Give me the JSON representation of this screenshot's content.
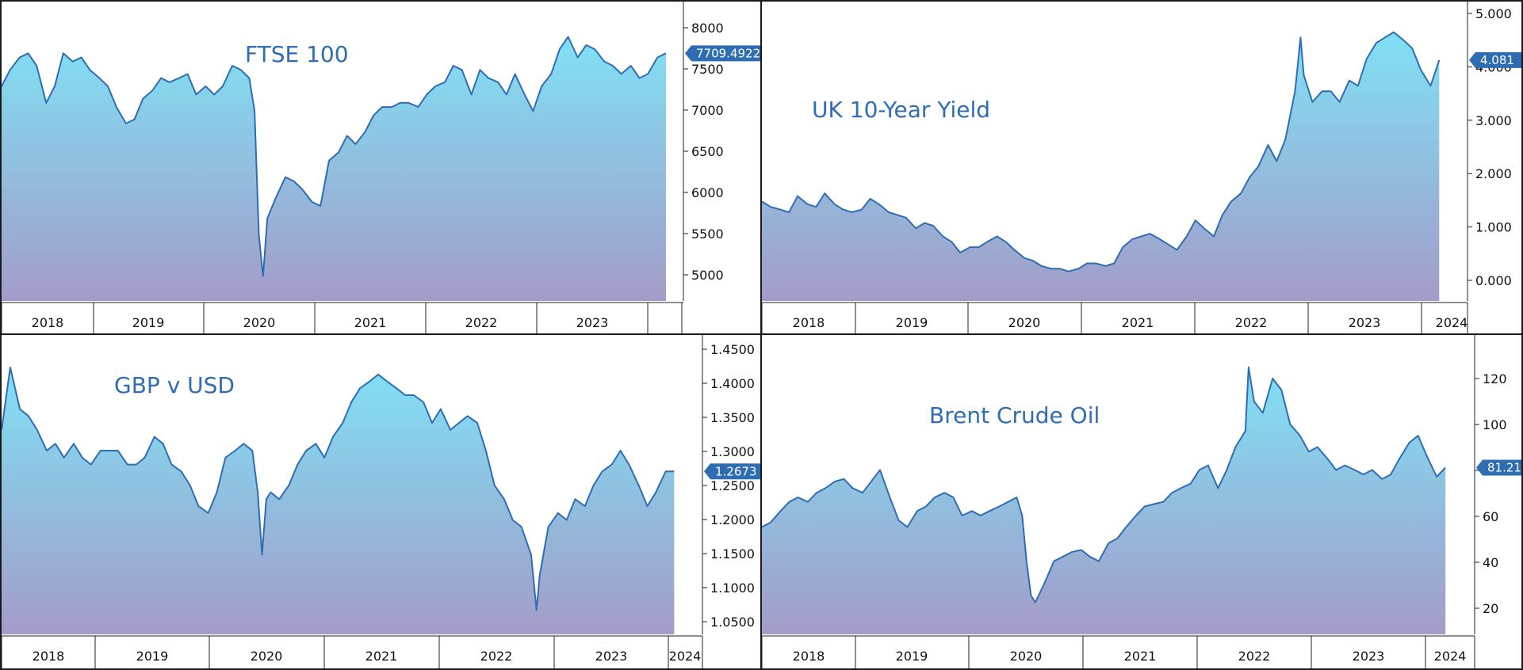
{
  "chart_data": [
    {
      "type": "area",
      "title": "FTSE 100",
      "xlabel": "",
      "ylabel": "",
      "x_labels": [
        "2018",
        "2019",
        "2020",
        "2021",
        "2022",
        "2023"
      ],
      "x_range": [
        2017.75,
        2024.0
      ],
      "ylim": [
        4700,
        8250
      ],
      "yticks": [
        "5000",
        "5500",
        "6000",
        "6500",
        "7000",
        "7500",
        "8000"
      ],
      "last_value": "7709.4922",
      "grid": false,
      "colors": {
        "line": "#2f6db3",
        "fill_top": "#80e0f5",
        "fill_bottom": "#a39cc8",
        "label_bg": "#2f6db3"
      },
      "series": [
        {
          "x": [
            2017.75,
            2017.83,
            2017.92,
            2018.0,
            2018.08,
            2018.17,
            2018.25,
            2018.33,
            2018.42,
            2018.5,
            2018.58,
            2018.67,
            2018.75,
            2018.83,
            2018.92,
            2019.0,
            2019.08,
            2019.17,
            2019.25,
            2019.33,
            2019.42,
            2019.5,
            2019.58,
            2019.67,
            2019.75,
            2019.83,
            2019.92,
            2020.0,
            2020.08,
            2020.13,
            2020.17,
            2020.21,
            2020.25,
            2020.33,
            2020.42,
            2020.5,
            2020.58,
            2020.67,
            2020.75,
            2020.83,
            2020.92,
            2021.0,
            2021.08,
            2021.17,
            2021.25,
            2021.33,
            2021.42,
            2021.5,
            2021.58,
            2021.67,
            2021.75,
            2021.83,
            2021.92,
            2022.0,
            2022.08,
            2022.17,
            2022.25,
            2022.33,
            2022.42,
            2022.5,
            2022.58,
            2022.67,
            2022.75,
            2022.83,
            2022.92,
            2023.0,
            2023.08,
            2023.17,
            2023.25,
            2023.33,
            2023.42,
            2023.5,
            2023.58,
            2023.67,
            2023.75,
            2023.83,
            2023.92,
            2024.0
          ],
          "y": [
            7300,
            7500,
            7650,
            7700,
            7550,
            7100,
            7300,
            7700,
            7600,
            7650,
            7500,
            7400,
            7300,
            7050,
            6850,
            6900,
            7150,
            7250,
            7400,
            7350,
            7400,
            7450,
            7200,
            7300,
            7200,
            7300,
            7550,
            7500,
            7400,
            7000,
            5500,
            5000,
            5700,
            5950,
            6200,
            6150,
            6050,
            5900,
            5850,
            6400,
            6500,
            6700,
            6600,
            6750,
            6950,
            7050,
            7050,
            7100,
            7100,
            7050,
            7200,
            7300,
            7350,
            7550,
            7500,
            7200,
            7500,
            7400,
            7350,
            7200,
            7450,
            7200,
            7000,
            7300,
            7450,
            7750,
            7900,
            7650,
            7800,
            7750,
            7600,
            7550,
            7450,
            7550,
            7400,
            7450,
            7650,
            7700
          ]
        }
      ]
    },
    {
      "type": "area",
      "title": "UK 10-Year Yield",
      "xlabel": "",
      "ylabel": "",
      "x_labels": [
        "2018",
        "2019",
        "2020",
        "2021",
        "2022",
        "2023",
        "2024"
      ],
      "x_range": [
        2017.75,
        2024.1
      ],
      "ylim": [
        -0.4,
        5.05
      ],
      "yticks": [
        "0.000",
        "1.000",
        "2.000",
        "3.000",
        "4.000",
        "5.000"
      ],
      "last_value": "4.081",
      "grid": false,
      "colors": {
        "line": "#2f6db3",
        "fill_top": "#80e0f5",
        "fill_bottom": "#a39cc8",
        "label_bg": "#2f6db3"
      },
      "series": [
        {
          "x": [
            2017.75,
            2017.83,
            2017.92,
            2018.0,
            2018.08,
            2018.17,
            2018.25,
            2018.33,
            2018.42,
            2018.5,
            2018.58,
            2018.67,
            2018.75,
            2018.83,
            2018.92,
            2019.0,
            2019.08,
            2019.17,
            2019.25,
            2019.33,
            2019.42,
            2019.5,
            2019.58,
            2019.67,
            2019.75,
            2019.83,
            2019.92,
            2020.0,
            2020.08,
            2020.17,
            2020.25,
            2020.33,
            2020.42,
            2020.5,
            2020.58,
            2020.67,
            2020.75,
            2020.83,
            2020.92,
            2021.0,
            2021.08,
            2021.17,
            2021.25,
            2021.33,
            2021.42,
            2021.5,
            2021.58,
            2021.67,
            2021.75,
            2021.83,
            2021.92,
            2022.0,
            2022.08,
            2022.17,
            2022.25,
            2022.33,
            2022.42,
            2022.5,
            2022.58,
            2022.67,
            2022.72,
            2022.75,
            2022.83,
            2022.92,
            2023.0,
            2023.08,
            2023.17,
            2023.25,
            2023.33,
            2023.42,
            2023.5,
            2023.58,
            2023.67,
            2023.75,
            2023.83,
            2023.92,
            2024.0
          ],
          "y": [
            1.45,
            1.35,
            1.3,
            1.25,
            1.55,
            1.4,
            1.35,
            1.6,
            1.4,
            1.3,
            1.25,
            1.3,
            1.5,
            1.4,
            1.25,
            1.2,
            1.15,
            0.95,
            1.05,
            1.0,
            0.8,
            0.7,
            0.5,
            0.6,
            0.6,
            0.7,
            0.8,
            0.7,
            0.55,
            0.4,
            0.35,
            0.25,
            0.2,
            0.2,
            0.15,
            0.2,
            0.3,
            0.3,
            0.25,
            0.3,
            0.6,
            0.75,
            0.8,
            0.85,
            0.75,
            0.65,
            0.55,
            0.8,
            1.1,
            0.95,
            0.8,
            1.2,
            1.45,
            1.6,
            1.9,
            2.1,
            2.5,
            2.2,
            2.6,
            3.5,
            4.5,
            3.8,
            3.3,
            3.5,
            3.5,
            3.3,
            3.7,
            3.6,
            4.1,
            4.4,
            4.5,
            4.6,
            4.45,
            4.3,
            3.9,
            3.6,
            4.08
          ]
        }
      ]
    },
    {
      "type": "area",
      "title": "GBP v USD",
      "xlabel": "",
      "ylabel": "",
      "x_labels": [
        "2018",
        "2019",
        "2020",
        "2021",
        "2022",
        "2023",
        "2024"
      ],
      "x_range": [
        2017.75,
        2024.1
      ],
      "ylim": [
        1.035,
        1.46
      ],
      "yticks": [
        "1.0500",
        "1.1000",
        "1.1500",
        "1.2000",
        "1.2500",
        "1.3000",
        "1.3500",
        "1.4000",
        "1.4500"
      ],
      "last_value": "1.2673",
      "grid": false,
      "colors": {
        "line": "#2f6db3",
        "fill_top": "#80e0f5",
        "fill_bottom": "#a39cc8",
        "label_bg": "#2f6db3"
      },
      "series": [
        {
          "x": [
            2017.75,
            2017.83,
            2017.92,
            2018.0,
            2018.08,
            2018.17,
            2018.25,
            2018.33,
            2018.42,
            2018.5,
            2018.58,
            2018.67,
            2018.75,
            2018.83,
            2018.92,
            2019.0,
            2019.08,
            2019.17,
            2019.25,
            2019.33,
            2019.42,
            2019.5,
            2019.58,
            2019.67,
            2019.75,
            2019.83,
            2019.92,
            2020.0,
            2020.08,
            2020.13,
            2020.17,
            2020.21,
            2020.25,
            2020.33,
            2020.42,
            2020.5,
            2020.58,
            2020.67,
            2020.75,
            2020.83,
            2020.92,
            2021.0,
            2021.08,
            2021.17,
            2021.25,
            2021.33,
            2021.42,
            2021.5,
            2021.58,
            2021.67,
            2021.75,
            2021.83,
            2021.92,
            2022.0,
            2022.08,
            2022.17,
            2022.25,
            2022.33,
            2022.42,
            2022.5,
            2022.58,
            2022.67,
            2022.72,
            2022.75,
            2022.83,
            2022.92,
            2023.0,
            2023.08,
            2023.17,
            2023.25,
            2023.33,
            2023.42,
            2023.5,
            2023.58,
            2023.67,
            2023.75,
            2023.83,
            2023.92,
            2024.0
          ],
          "y": [
            1.33,
            1.42,
            1.36,
            1.35,
            1.33,
            1.3,
            1.31,
            1.29,
            1.31,
            1.29,
            1.28,
            1.3,
            1.3,
            1.3,
            1.28,
            1.28,
            1.29,
            1.32,
            1.31,
            1.28,
            1.27,
            1.25,
            1.22,
            1.21,
            1.24,
            1.29,
            1.3,
            1.31,
            1.3,
            1.24,
            1.15,
            1.23,
            1.24,
            1.23,
            1.25,
            1.28,
            1.3,
            1.31,
            1.29,
            1.32,
            1.34,
            1.37,
            1.39,
            1.4,
            1.41,
            1.4,
            1.39,
            1.38,
            1.38,
            1.37,
            1.34,
            1.36,
            1.33,
            1.34,
            1.35,
            1.34,
            1.3,
            1.25,
            1.23,
            1.2,
            1.19,
            1.15,
            1.07,
            1.12,
            1.19,
            1.21,
            1.2,
            1.23,
            1.22,
            1.25,
            1.27,
            1.28,
            1.3,
            1.28,
            1.25,
            1.22,
            1.24,
            1.27,
            1.27
          ]
        }
      ]
    },
    {
      "type": "area",
      "title": "Brent Crude Oil",
      "xlabel": "",
      "ylabel": "",
      "x_labels": [
        "2018",
        "2019",
        "2020",
        "2021",
        "2022",
        "2023",
        "2024"
      ],
      "x_range": [
        2017.75,
        2024.1
      ],
      "ylim": [
        8,
        137
      ],
      "yticks": [
        "20",
        "40",
        "60",
        "80",
        "100",
        "120"
      ],
      "last_value": "81.21",
      "grid": false,
      "colors": {
        "line": "#2f6db3",
        "fill_top": "#80e0f5",
        "fill_bottom": "#a39cc8",
        "label_bg": "#2f6db3"
      },
      "series": [
        {
          "x": [
            2017.75,
            2017.83,
            2017.92,
            2018.0,
            2018.08,
            2018.17,
            2018.25,
            2018.33,
            2018.42,
            2018.5,
            2018.58,
            2018.67,
            2018.75,
            2018.83,
            2018.92,
            2019.0,
            2019.08,
            2019.17,
            2019.25,
            2019.33,
            2019.42,
            2019.5,
            2019.58,
            2019.67,
            2019.75,
            2019.83,
            2019.92,
            2020.0,
            2020.08,
            2020.13,
            2020.17,
            2020.21,
            2020.25,
            2020.33,
            2020.42,
            2020.5,
            2020.58,
            2020.67,
            2020.75,
            2020.83,
            2020.92,
            2021.0,
            2021.08,
            2021.17,
            2021.25,
            2021.33,
            2021.42,
            2021.5,
            2021.58,
            2021.67,
            2021.75,
            2021.83,
            2021.92,
            2022.0,
            2022.08,
            2022.17,
            2022.2,
            2022.25,
            2022.33,
            2022.42,
            2022.5,
            2022.58,
            2022.67,
            2022.75,
            2022.83,
            2022.92,
            2023.0,
            2023.08,
            2023.17,
            2023.25,
            2023.33,
            2023.42,
            2023.5,
            2023.58,
            2023.67,
            2023.75,
            2023.83,
            2023.92,
            2024.0
          ],
          "y": [
            55,
            57,
            62,
            66,
            68,
            66,
            70,
            72,
            75,
            76,
            72,
            70,
            75,
            80,
            68,
            58,
            55,
            62,
            64,
            68,
            70,
            68,
            60,
            62,
            60,
            62,
            64,
            66,
            68,
            60,
            40,
            25,
            22,
            30,
            40,
            42,
            44,
            45,
            42,
            40,
            48,
            50,
            55,
            60,
            64,
            65,
            66,
            70,
            72,
            74,
            80,
            82,
            72,
            80,
            90,
            97,
            125,
            110,
            105,
            120,
            115,
            100,
            95,
            88,
            90,
            85,
            80,
            82,
            80,
            78,
            80,
            76,
            78,
            85,
            92,
            95,
            86,
            77,
            81
          ]
        }
      ]
    }
  ]
}
